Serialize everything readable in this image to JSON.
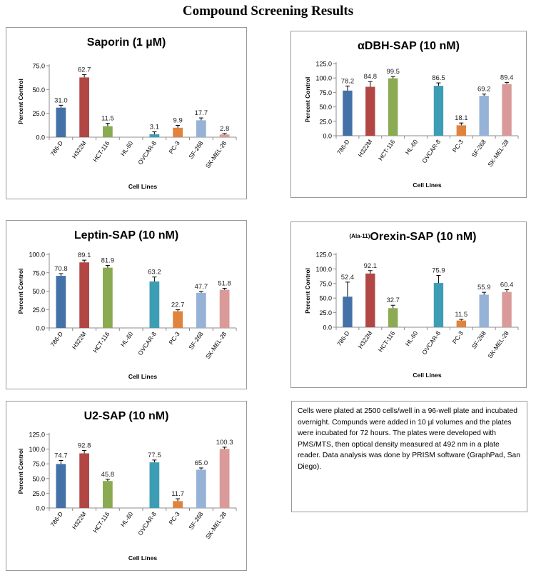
{
  "page_title": "Compound Screening Results",
  "colors": {
    "786-D": "#4472a8",
    "H322M": "#b24644",
    "HCT-116": "#8aab52",
    "HL-60": "#6f5a94",
    "OVCAR-8": "#3d9db4",
    "PC-3": "#e0843d",
    "SF-268": "#97b2d7",
    "SK-MEL-28": "#d99a99"
  },
  "note": "Cells were plated at 2500 cells/well in a 96-well plate and incubated overnight.  Compunds were added in 10 µl volumes and the plates were incubated for 72 hours.  The plates were developed with PMS/MTS, then optical density measured at 492 nm in a plate reader.  Data analysis was done by PRISM software (GraphPad, San Diego).",
  "chart_data": [
    {
      "type": "bar",
      "title": "Saporin (1 µM)",
      "title_prefix": "",
      "xlabel": "Cell Lines",
      "ylabel": "Percent Control",
      "ylim": [
        0,
        75
      ],
      "yticks": [
        "0.0",
        "25.0",
        "50.0",
        "75.0"
      ],
      "ytick_values": [
        0,
        25,
        50,
        75
      ],
      "categories": [
        "786-D",
        "H322M",
        "HCT-116",
        "HL-60",
        "OVCAR-8",
        "PC-3",
        "SF-268",
        "SK-MEL-28"
      ],
      "values": [
        31.0,
        62.7,
        11.5,
        null,
        3.1,
        9.9,
        17.7,
        2.8
      ],
      "labels": [
        "31.0",
        "62.7",
        "11.5",
        "",
        "3.1",
        "9.9",
        "17.7",
        "2.8"
      ],
      "errors": [
        2.5,
        3.0,
        3.0,
        null,
        2.5,
        2.5,
        2.5,
        1.0
      ],
      "grid": false
    },
    {
      "type": "bar",
      "title": "αDBH-SAP (10 nM)",
      "title_prefix": "",
      "xlabel": "Cell Lines",
      "ylabel": "Percent Control",
      "ylim": [
        0,
        125
      ],
      "yticks": [
        "0.0",
        "25.0",
        "50.0",
        "75.0",
        "100.0",
        "125.0"
      ],
      "ytick_values": [
        0,
        25,
        50,
        75,
        100,
        125
      ],
      "categories": [
        "786-D",
        "H322M",
        "HCT-116",
        "HL-60",
        "OVCAR-8",
        "PC-3",
        "SF-268",
        "SK-MEL-28"
      ],
      "values": [
        78.2,
        84.8,
        99.5,
        null,
        86.5,
        18.1,
        69.2,
        89.4
      ],
      "labels": [
        "78.2",
        "84.8",
        "99.5",
        "",
        "86.5",
        "18.1",
        "69.2",
        "89.4"
      ],
      "errors": [
        8.0,
        9.0,
        3.0,
        null,
        5.0,
        4.0,
        3.0,
        3.0
      ],
      "grid": false
    },
    {
      "type": "bar",
      "title": "Leptin-SAP (10 nM)",
      "title_prefix": "",
      "xlabel": "Cell Lines",
      "ylabel": "Percent Control",
      "ylim": [
        0,
        100
      ],
      "yticks": [
        "0.0",
        "25.0",
        "50.0",
        "75.0",
        "100.0"
      ],
      "ytick_values": [
        0,
        25,
        50,
        75,
        100
      ],
      "categories": [
        "786-D",
        "H322M",
        "HCT-116",
        "HL-60",
        "OVCAR-8",
        "PC-3",
        "SF-268",
        "SK-MEL-28"
      ],
      "values": [
        70.8,
        89.1,
        81.9,
        null,
        63.2,
        22.7,
        47.7,
        51.8
      ],
      "labels": [
        "70.8",
        "89.1",
        "81.9",
        "",
        "63.2",
        "22.7",
        "47.7",
        "51.8"
      ],
      "errors": [
        3.0,
        3.0,
        3.0,
        null,
        6.0,
        2.0,
        2.0,
        2.0
      ],
      "grid": false
    },
    {
      "type": "bar",
      "title": "Orexin-SAP (10 nM)",
      "title_prefix": "(Ala-11)",
      "xlabel": "Cell Lines",
      "ylabel": "Percent Control",
      "ylim": [
        0,
        125
      ],
      "yticks": [
        "0.0",
        "25.0",
        "50.0",
        "75.0",
        "100.0",
        "125.0"
      ],
      "ytick_values": [
        0,
        25,
        50,
        75,
        100,
        125
      ],
      "categories": [
        "786-D",
        "H322M",
        "HCT-116",
        "HL-60",
        "OVCAR-8",
        "PC-3",
        "SF-268",
        "SK-MEL-28"
      ],
      "values": [
        52.4,
        92.1,
        32.7,
        null,
        75.9,
        11.5,
        55.9,
        60.4
      ],
      "labels": [
        "52.4",
        "92.1",
        "32.7",
        "",
        "75.9",
        "11.5",
        "55.9",
        "60.4"
      ],
      "errors": [
        25.0,
        5.0,
        5.0,
        null,
        13.0,
        2.0,
        4.0,
        4.0
      ],
      "grid": false
    },
    {
      "type": "bar",
      "title": "U2-SAP (10 nM)",
      "title_prefix": "",
      "xlabel": "Cell Lines",
      "ylabel": "Percent Control",
      "ylim": [
        0,
        125
      ],
      "yticks": [
        "0.0",
        "25.0",
        "50.0",
        "75.0",
        "100.0",
        "125.0"
      ],
      "ytick_values": [
        0,
        25,
        50,
        75,
        100,
        125
      ],
      "categories": [
        "786-D",
        "H322M",
        "HCT-116",
        "HL-60",
        "OVCAR-8",
        "PC-3",
        "SF-268",
        "SK-MEL-28"
      ],
      "values": [
        74.7,
        92.8,
        45.8,
        null,
        77.5,
        11.7,
        65.0,
        100.3
      ],
      "labels": [
        "74.7",
        "92.8",
        "45.8",
        "",
        "77.5",
        "11.7",
        "65.0",
        "100.3"
      ],
      "errors": [
        6.0,
        5.0,
        3.0,
        null,
        4.0,
        4.0,
        3.0,
        3.0
      ],
      "grid": false
    }
  ]
}
